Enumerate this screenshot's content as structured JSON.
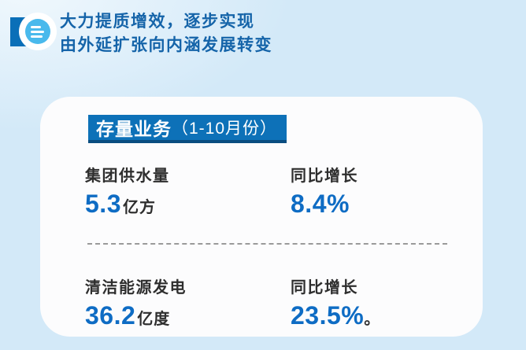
{
  "header": {
    "title_line1": "大力提质增效，逐步实现",
    "title_line2": "由外延扩张向内涵发展转变"
  },
  "card": {
    "banner": {
      "title": "存量业务",
      "period": "（1-10月份）"
    },
    "stats": [
      {
        "label": "集团供水量",
        "value": "5.3",
        "unit": "亿方",
        "growth_label": "同比增长",
        "growth_value": "8.4%",
        "growth_suffix": ""
      },
      {
        "label": "清洁能源发电",
        "value": "36.2",
        "unit": "亿度",
        "growth_label": "同比增长",
        "growth_value": "23.5%",
        "growth_suffix": "。"
      }
    ]
  },
  "colors": {
    "page_background": "#d3e9f8",
    "card_background": "#fcfcfd",
    "banner_blue": "#0d71b8",
    "banner_shadow_blue": "#0a4d80",
    "header_title_blue": "#1564a9",
    "value_blue": "#0e6cc4",
    "dark_text": "#2e2e2e",
    "icon_square_blue": "#0a6fb8",
    "icon_circle_sky_blue": "#49b9ec"
  }
}
